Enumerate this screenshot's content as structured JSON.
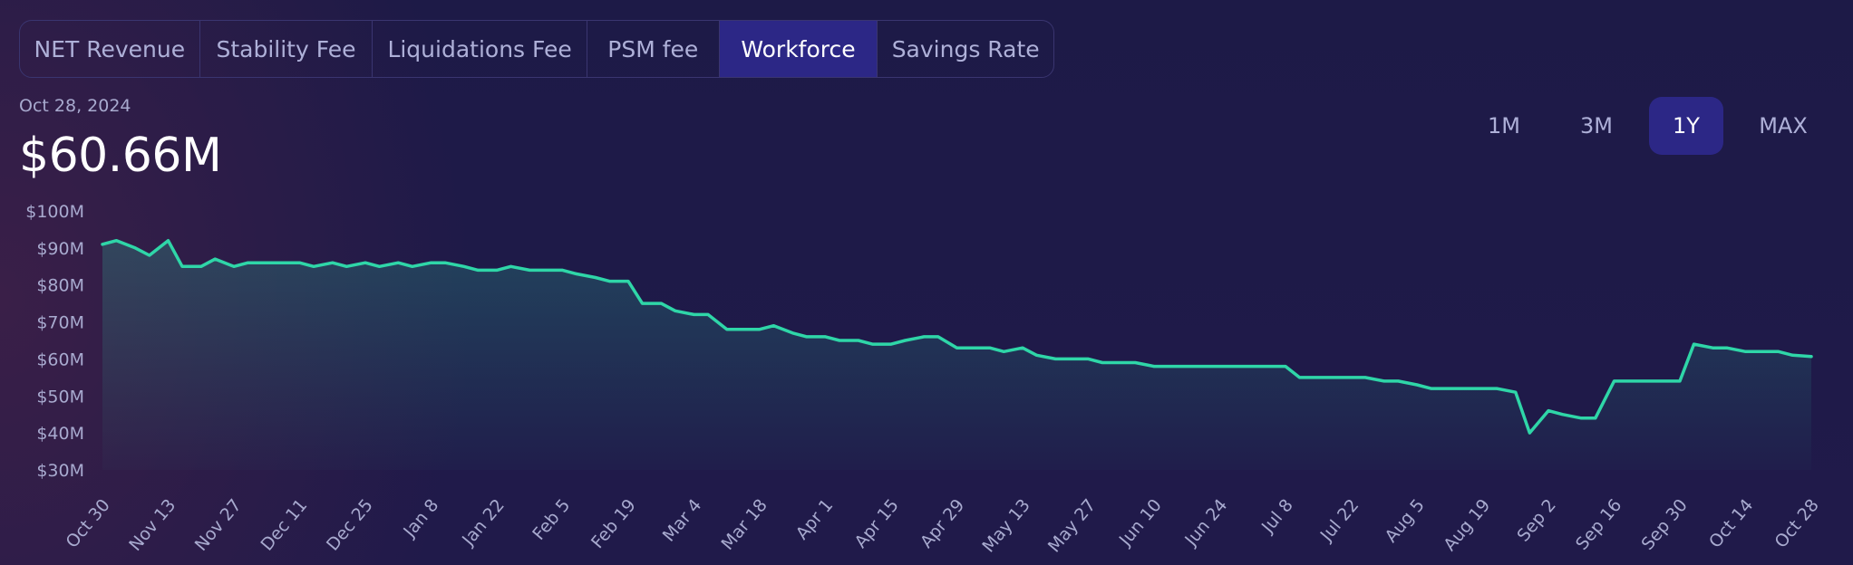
{
  "tabs": [
    {
      "label": "NET Revenue",
      "active": false
    },
    {
      "label": "Stability Fee",
      "active": false
    },
    {
      "label": "Liquidations Fee",
      "active": false
    },
    {
      "label": "PSM fee",
      "active": false
    },
    {
      "label": "Workforce",
      "active": true
    },
    {
      "label": "Savings Rate",
      "active": false
    }
  ],
  "header": {
    "date": "Oct 28, 2024",
    "value": "$60.66M"
  },
  "ranges": [
    {
      "label": "1M",
      "active": false
    },
    {
      "label": "3M",
      "active": false
    },
    {
      "label": "1Y",
      "active": true
    },
    {
      "label": "MAX",
      "active": false
    }
  ],
  "colors": {
    "line": "#2fd6a8",
    "active_tab": "#2c2786",
    "text_muted": "#a8aacf"
  },
  "chart_data": {
    "type": "area",
    "ylim": [
      30,
      100
    ],
    "y_ticks": [
      "$30M",
      "$40M",
      "$50M",
      "$60M",
      "$70M",
      "$80M",
      "$90M",
      "$100M"
    ],
    "x_ticks": [
      "Oct 30",
      "Nov 13",
      "Nov 27",
      "Dec 11",
      "Dec 25",
      "Jan 8",
      "Jan 22",
      "Feb 5",
      "Feb 19",
      "Mar 4",
      "Mar 18",
      "Apr 1",
      "Apr 15",
      "Apr 29",
      "May 13",
      "May 27",
      "Jun 10",
      "Jun 24",
      "Jul 8",
      "Jul 22",
      "Aug 5",
      "Aug 19",
      "Sep 2",
      "Sep 16",
      "Sep 30",
      "Oct 14",
      "Oct 28"
    ],
    "series": [
      {
        "x": [
          "2023-10-30",
          "2023-11-02",
          "2023-11-06",
          "2023-11-09",
          "2023-11-13",
          "2023-11-16",
          "2023-11-20",
          "2023-11-23",
          "2023-11-27",
          "2023-11-30",
          "2023-12-04",
          "2023-12-07",
          "2023-12-11",
          "2023-12-14",
          "2023-12-18",
          "2023-12-21",
          "2023-12-25",
          "2023-12-28",
          "2024-01-01",
          "2024-01-04",
          "2024-01-08",
          "2024-01-11",
          "2024-01-15",
          "2024-01-18",
          "2024-01-22",
          "2024-01-25",
          "2024-01-29",
          "2024-02-01",
          "2024-02-05",
          "2024-02-08",
          "2024-02-12",
          "2024-02-15",
          "2024-02-19",
          "2024-02-22",
          "2024-02-26",
          "2024-02-29",
          "2024-03-04",
          "2024-03-07",
          "2024-03-11",
          "2024-03-14",
          "2024-03-18",
          "2024-03-21",
          "2024-03-25",
          "2024-03-28",
          "2024-04-01",
          "2024-04-04",
          "2024-04-08",
          "2024-04-11",
          "2024-04-15",
          "2024-04-18",
          "2024-04-22",
          "2024-04-25",
          "2024-04-29",
          "2024-05-02",
          "2024-05-06",
          "2024-05-09",
          "2024-05-13",
          "2024-05-16",
          "2024-05-20",
          "2024-05-23",
          "2024-05-27",
          "2024-05-30",
          "2024-06-03",
          "2024-06-06",
          "2024-06-10",
          "2024-06-13",
          "2024-06-17",
          "2024-06-20",
          "2024-06-24",
          "2024-06-27",
          "2024-07-01",
          "2024-07-04",
          "2024-07-08",
          "2024-07-11",
          "2024-07-15",
          "2024-07-18",
          "2024-07-22",
          "2024-07-25",
          "2024-07-29",
          "2024-08-01",
          "2024-08-05",
          "2024-08-08",
          "2024-08-12",
          "2024-08-15",
          "2024-08-19",
          "2024-08-22",
          "2024-08-26",
          "2024-08-29",
          "2024-09-02",
          "2024-09-05",
          "2024-09-09",
          "2024-09-12",
          "2024-09-16",
          "2024-09-19",
          "2024-09-23",
          "2024-09-26",
          "2024-09-30",
          "2024-10-03",
          "2024-10-07",
          "2024-10-10",
          "2024-10-14",
          "2024-10-17",
          "2024-10-21",
          "2024-10-24",
          "2024-10-28"
        ],
        "values": [
          91,
          92,
          90,
          88,
          92,
          85,
          85,
          87,
          85,
          86,
          86,
          86,
          86,
          85,
          86,
          85,
          86,
          85,
          86,
          85,
          86,
          86,
          85,
          84,
          84,
          85,
          84,
          84,
          84,
          83,
          82,
          81,
          81,
          75,
          75,
          73,
          72,
          72,
          68,
          68,
          68,
          69,
          67,
          66,
          66,
          65,
          65,
          64,
          64,
          65,
          66,
          66,
          63,
          63,
          63,
          62,
          63,
          61,
          60,
          60,
          60,
          59,
          59,
          59,
          58,
          58,
          58,
          58,
          58,
          58,
          58,
          58,
          58,
          55,
          55,
          55,
          55,
          55,
          54,
          54,
          53,
          52,
          52,
          52,
          52,
          52,
          51,
          40,
          46,
          45,
          44,
          44,
          54,
          54,
          54,
          54,
          54,
          64,
          63,
          63,
          62,
          62,
          62,
          61,
          60.66
        ]
      }
    ]
  }
}
